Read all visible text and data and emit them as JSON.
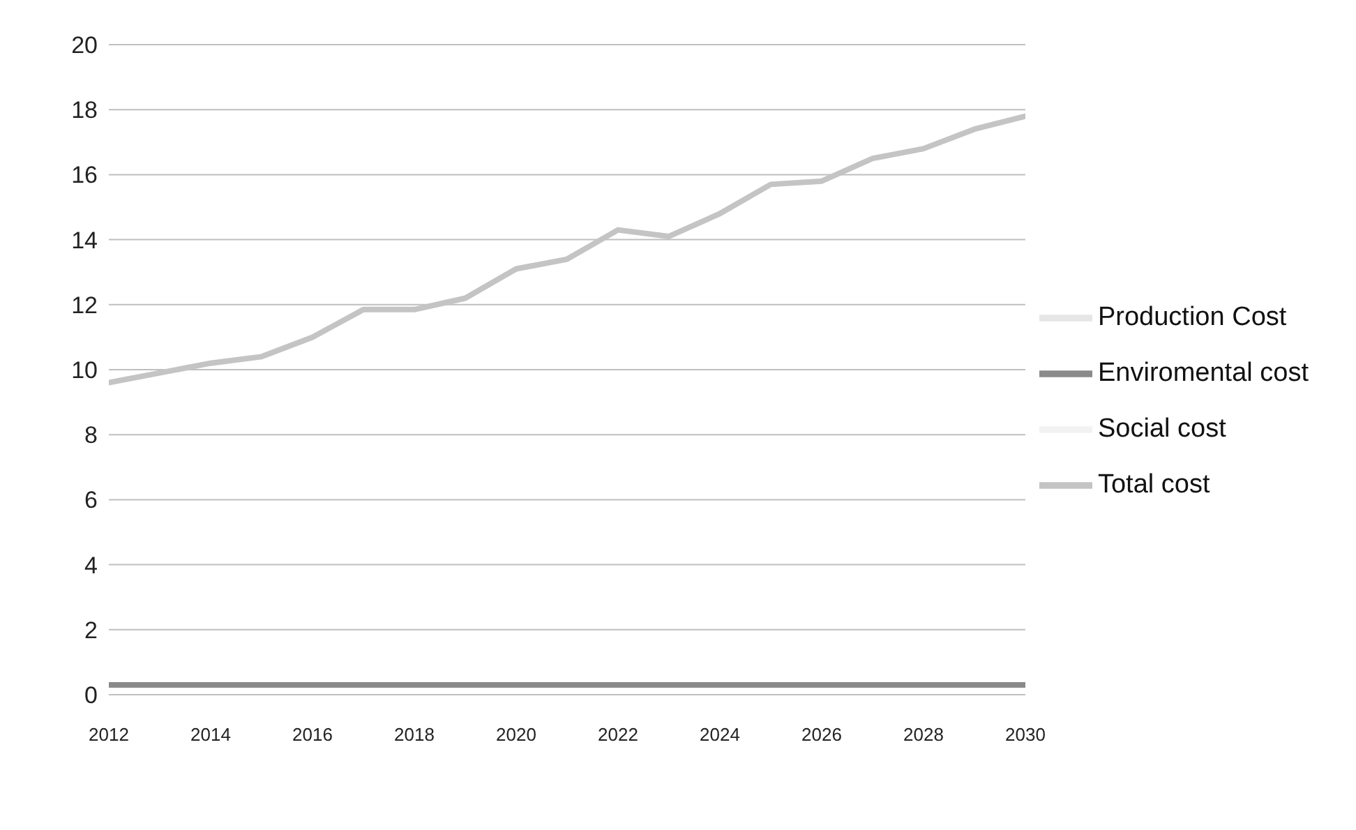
{
  "chart_data": {
    "type": "line",
    "x": [
      2012,
      2013,
      2014,
      2015,
      2016,
      2017,
      2018,
      2019,
      2020,
      2021,
      2022,
      2023,
      2024,
      2025,
      2026,
      2027,
      2028,
      2029,
      2030
    ],
    "series": [
      {
        "name": "Production Cost",
        "color": "#e6e6e6",
        "values": [
          null,
          null,
          null,
          null,
          null,
          null,
          null,
          null,
          null,
          null,
          null,
          null,
          null,
          null,
          null,
          null,
          null,
          null,
          null
        ]
      },
      {
        "name": "Enviromental cost",
        "color": "#8a8a8a",
        "values": [
          0.3,
          0.3,
          0.3,
          0.3,
          0.3,
          0.3,
          0.3,
          0.3,
          0.3,
          0.3,
          0.3,
          0.3,
          0.3,
          0.3,
          0.3,
          0.3,
          0.3,
          0.3,
          0.3
        ]
      },
      {
        "name": "Social cost",
        "color": "#f2f2f2",
        "values": [
          null,
          null,
          null,
          null,
          null,
          null,
          null,
          null,
          null,
          null,
          null,
          null,
          null,
          null,
          null,
          null,
          null,
          null,
          null
        ]
      },
      {
        "name": "Total cost",
        "color": "#c4c4c4",
        "values": [
          9.6,
          9.9,
          10.2,
          10.4,
          11.0,
          11.85,
          11.85,
          12.2,
          13.1,
          13.4,
          14.3,
          14.1,
          14.8,
          15.7,
          15.8,
          16.5,
          16.8,
          17.4,
          17.8
        ]
      }
    ],
    "xlim": [
      2012,
      2030
    ],
    "xticks": [
      2012,
      2014,
      2016,
      2018,
      2020,
      2022,
      2024,
      2026,
      2028,
      2030
    ],
    "ylim": [
      0,
      20
    ],
    "yticks": [
      0,
      2,
      4,
      6,
      8,
      10,
      12,
      14,
      16,
      18,
      20
    ],
    "grid": "y",
    "legend": "right",
    "marker": "none",
    "line_style": "solid"
  }
}
